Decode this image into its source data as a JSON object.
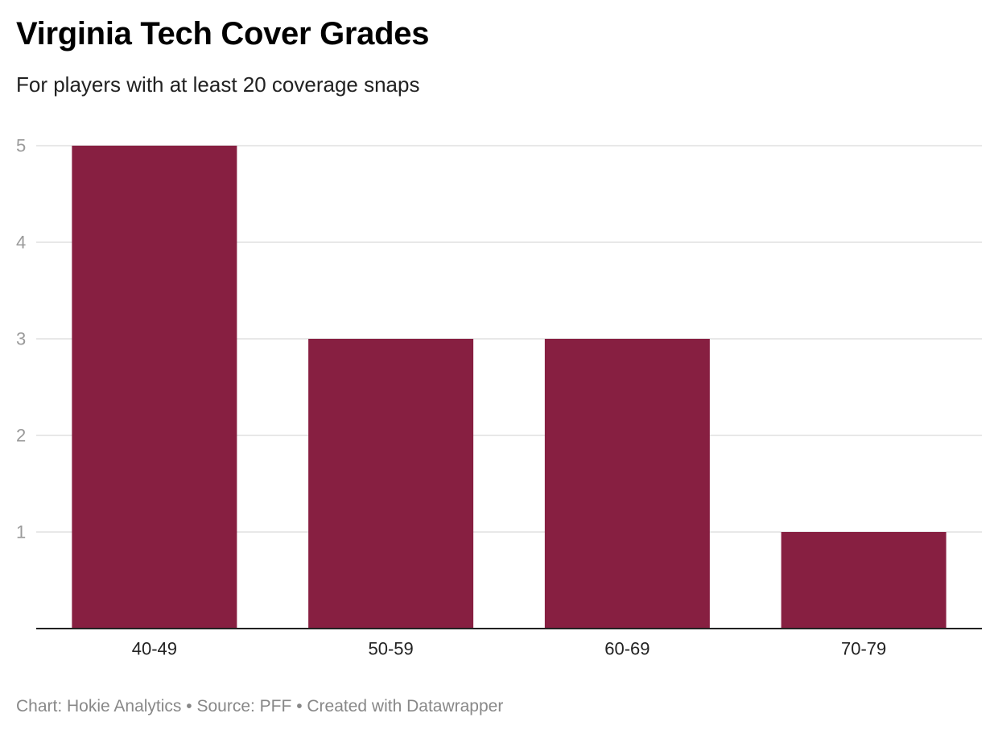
{
  "title": "Virginia Tech Cover Grades",
  "subtitle": "For players with at least 20 coverage snaps",
  "footer": {
    "chart_credit": "Chart: Hokie Analytics",
    "source": "Source: PFF",
    "created_with": "Created with Datawrapper",
    "separator": "•"
  },
  "colors": {
    "bar": "#871F41",
    "gridline": "#e0e0e0",
    "tick_label": "#9a9a9a",
    "category_label": "#222222",
    "baseline": "#222222"
  },
  "chart_data": {
    "type": "bar",
    "categories": [
      "40-49",
      "50-59",
      "60-69",
      "70-79"
    ],
    "values": [
      5,
      3,
      3,
      1
    ],
    "yticks": [
      1,
      2,
      3,
      4,
      5
    ],
    "ylim": [
      0,
      5
    ],
    "grid": true,
    "legend": "none"
  }
}
